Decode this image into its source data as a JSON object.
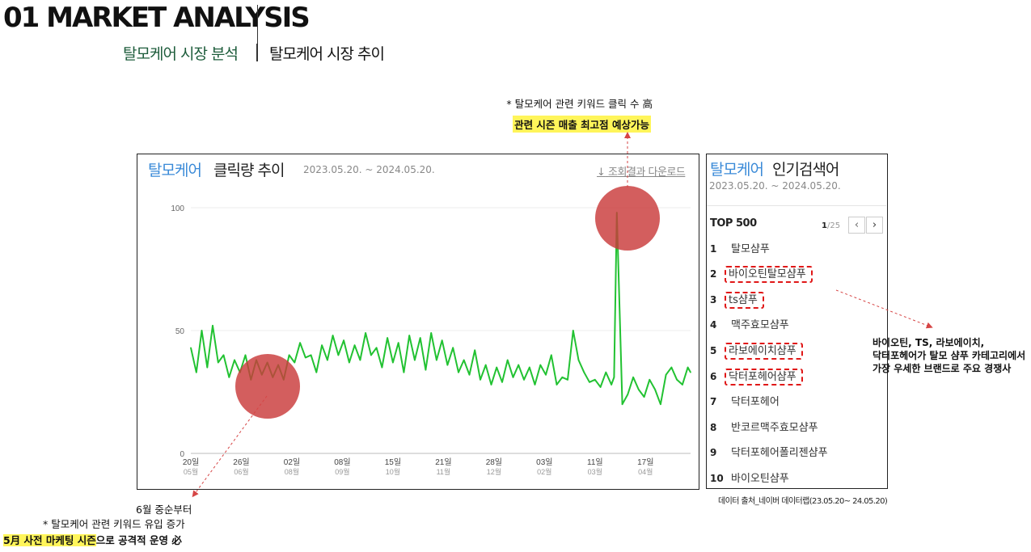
{
  "header": {
    "title": "01 MARKET ANALYSIS",
    "subtitle_green": "탈모케어 시장 분석",
    "subtitle_black": "탈모케어 시장 추이"
  },
  "annotations": {
    "peak_note": "* 탈모케어 관련 키워드 클릭 수 高",
    "peak_highlight": "관련 시즌 매출 최고점 예상가능",
    "low_note_1": "6월 중순부터",
    "low_note_2": "* 탈모케어 관련 키워드 유입 증가",
    "low_note_3_highlight": "5月 사전 마케팅 시즌",
    "low_note_3_rest": "으로 공격적 운영 必",
    "competitor_lines": [
      "바이오틴, TS, 라보에이치,",
      "닥터포헤어가 탈모 샴푸 카테고리에서",
      "가장 우세한 브랜드로 주요 경쟁사"
    ],
    "marker_color": "#c93a3a",
    "arrow_color": "#d64545",
    "highlight_color": "#fff55a"
  },
  "chart_panel": {
    "title_keyword": "탈모케어",
    "title_rest": "클릭량 추이",
    "period": "2023.05.20. ~ 2024.05.20.",
    "download_label": "조회결과 다운로드",
    "download_icon": "download-arrow-icon"
  },
  "keyword_panel": {
    "title_keyword": "탈모케어",
    "title_rest": "인기검색어",
    "period": "2023.05.20. ~ 2024.05.20.",
    "top_label": "TOP 500",
    "page_current": "1",
    "page_total": "/25",
    "prev_icon": "chevron-left-icon",
    "next_icon": "chevron-right-icon",
    "items": [
      {
        "rank": "1",
        "text": "탈모샴푸",
        "boxed": false
      },
      {
        "rank": "2",
        "text": "바이오틴탈모샴푸",
        "boxed": true
      },
      {
        "rank": "3",
        "text": "ts샴푸",
        "boxed": true
      },
      {
        "rank": "4",
        "text": "맥주효모샴푸",
        "boxed": false
      },
      {
        "rank": "5",
        "text": "라보에이치샴푸",
        "boxed": true
      },
      {
        "rank": "6",
        "text": "닥터포헤어샴푸",
        "boxed": true
      },
      {
        "rank": "7",
        "text": "닥터포헤어",
        "boxed": false
      },
      {
        "rank": "8",
        "text": "반코르맥주효모샴푸",
        "boxed": false
      },
      {
        "rank": "9",
        "text": "닥터포헤어폴리젠샴푸",
        "boxed": false
      },
      {
        "rank": "10",
        "text": "바이오틴샴푸",
        "boxed": false
      }
    ],
    "source": "데이터 출처_네이버 데이터랩(23.05.20~ 24.05.20)"
  },
  "chart_data": {
    "type": "line",
    "title": "탈모케어 클릭량 추이",
    "subtitle": "2023.05.20. ~ 2024.05.20.",
    "xlabel": "",
    "ylabel": "",
    "ylim": [
      0,
      100
    ],
    "y_ticks": [
      0,
      50,
      100
    ],
    "grid": true,
    "legend": "none",
    "line_color": "#22c232",
    "x_ticks": [
      {
        "day": "20일",
        "month": "05월",
        "date": "2023-05-20"
      },
      {
        "day": "26일",
        "month": "06월",
        "date": "2023-06-26"
      },
      {
        "day": "02일",
        "month": "08월",
        "date": "2023-08-02"
      },
      {
        "day": "08일",
        "month": "09월",
        "date": "2023-09-08"
      },
      {
        "day": "15일",
        "month": "10월",
        "date": "2023-10-15"
      },
      {
        "day": "21일",
        "month": "11월",
        "date": "2023-11-21"
      },
      {
        "day": "28일",
        "month": "12월",
        "date": "2023-12-28"
      },
      {
        "day": "03일",
        "month": "02월",
        "date": "2024-02-03"
      },
      {
        "day": "11일",
        "month": "03월",
        "date": "2024-03-11"
      },
      {
        "day": "17일",
        "month": "04월",
        "date": "2024-04-17"
      }
    ],
    "series": [
      {
        "x": [
          "2023-05-20",
          "2023-05-24",
          "2023-05-28",
          "2023-06-01",
          "2023-06-05",
          "2023-06-09",
          "2023-06-13",
          "2023-06-17",
          "2023-06-21",
          "2023-06-25",
          "2023-06-29",
          "2023-07-03",
          "2023-07-07",
          "2023-07-11",
          "2023-07-15",
          "2023-07-19",
          "2023-07-23",
          "2023-07-27",
          "2023-07-31",
          "2023-08-04",
          "2023-08-08",
          "2023-08-12",
          "2023-08-16",
          "2023-08-20",
          "2023-08-24",
          "2023-08-28",
          "2023-09-01",
          "2023-09-05",
          "2023-09-09",
          "2023-09-13",
          "2023-09-17",
          "2023-09-21",
          "2023-09-25",
          "2023-09-29",
          "2023-10-03",
          "2023-10-07",
          "2023-10-11",
          "2023-10-15",
          "2023-10-19",
          "2023-10-23",
          "2023-10-27",
          "2023-10-31",
          "2023-11-04",
          "2023-11-08",
          "2023-11-12",
          "2023-11-16",
          "2023-11-20",
          "2023-11-24",
          "2023-11-28",
          "2023-12-02",
          "2023-12-06",
          "2023-12-10",
          "2023-12-14",
          "2023-12-18",
          "2023-12-22",
          "2023-12-26",
          "2023-12-30",
          "2024-01-03",
          "2024-01-07",
          "2024-01-11",
          "2024-01-15",
          "2024-01-19",
          "2024-01-23",
          "2024-01-27",
          "2024-01-31",
          "2024-02-04",
          "2024-02-08",
          "2024-02-12",
          "2024-02-16",
          "2024-02-20",
          "2024-02-24",
          "2024-02-28",
          "2024-03-03",
          "2024-03-07",
          "2024-03-11",
          "2024-03-15",
          "2024-03-19",
          "2024-03-23",
          "2024-03-25",
          "2024-03-27",
          "2024-03-31",
          "2024-04-04",
          "2024-04-08",
          "2024-04-12",
          "2024-04-16",
          "2024-04-20",
          "2024-04-24",
          "2024-04-28",
          "2024-05-02",
          "2024-05-06",
          "2024-05-10",
          "2024-05-14",
          "2024-05-18",
          "2024-05-20"
        ],
        "values": [
          43,
          33,
          50,
          35,
          52,
          37,
          40,
          31,
          38,
          33,
          40,
          30,
          38,
          32,
          37,
          31,
          36,
          30,
          40,
          37,
          45,
          39,
          40,
          33,
          44,
          38,
          48,
          40,
          46,
          37,
          44,
          38,
          49,
          40,
          43,
          35,
          47,
          37,
          45,
          33,
          48,
          38,
          47,
          34,
          49,
          38,
          46,
          36,
          43,
          33,
          38,
          32,
          42,
          30,
          36,
          28,
          35,
          29,
          38,
          31,
          36,
          30,
          35,
          28,
          36,
          32,
          40,
          28,
          31,
          30,
          50,
          38,
          33,
          29,
          30,
          27,
          33,
          28,
          31,
          98,
          20,
          24,
          31,
          26,
          23,
          30,
          26,
          20,
          32,
          35,
          30,
          28,
          35,
          33
        ]
      }
    ]
  }
}
